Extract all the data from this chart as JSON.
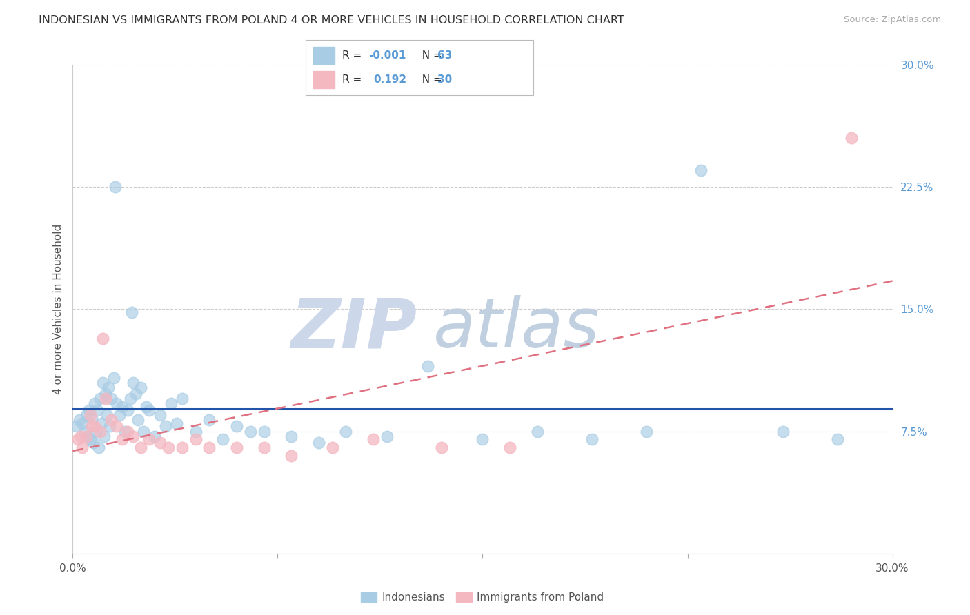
{
  "title": "INDONESIAN VS IMMIGRANTS FROM POLAND 4 OR MORE VEHICLES IN HOUSEHOLD CORRELATION CHART",
  "source": "Source: ZipAtlas.com",
  "ylabel_label": "4 or more Vehicles in Household",
  "right_yticks": [
    7.5,
    15.0,
    22.5,
    30.0
  ],
  "xlim": [
    0.0,
    30.0
  ],
  "ylim": [
    0.0,
    30.0
  ],
  "legend_blue_r": "-0.001",
  "legend_blue_n": "63",
  "legend_pink_r": "0.192",
  "legend_pink_n": "30",
  "legend_label_blue": "Indonesians",
  "legend_label_pink": "Immigrants from Poland",
  "blue_color": "#a8cce4",
  "pink_color": "#f4b8c1",
  "trendline_blue_color": "#2255aa",
  "trendline_pink_color": "#e07080",
  "watermark_zip_color": "#ccd9ea",
  "watermark_atlas_color": "#c8d8e8",
  "indonesian_x": [
    0.15,
    0.25,
    0.35,
    0.45,
    0.5,
    0.55,
    0.6,
    0.65,
    0.7,
    0.75,
    0.8,
    0.85,
    0.9,
    0.95,
    1.0,
    1.05,
    1.1,
    1.15,
    1.2,
    1.25,
    1.3,
    1.35,
    1.4,
    1.5,
    1.6,
    1.7,
    1.8,
    1.9,
    2.0,
    2.1,
    2.2,
    2.3,
    2.4,
    2.5,
    2.6,
    2.7,
    2.8,
    3.0,
    3.2,
    3.4,
    3.6,
    3.8,
    4.0,
    4.5,
    5.0,
    5.5,
    6.0,
    6.5,
    7.0,
    8.0,
    9.0,
    10.0,
    11.5,
    13.0,
    15.0,
    17.0,
    19.0,
    21.0,
    23.0,
    26.0,
    28.0,
    1.55,
    2.15
  ],
  "indonesian_y": [
    7.8,
    8.2,
    8.0,
    7.5,
    8.5,
    7.2,
    8.8,
    7.0,
    8.3,
    6.8,
    9.2,
    7.5,
    8.8,
    6.5,
    9.5,
    8.0,
    10.5,
    7.2,
    9.8,
    8.5,
    10.2,
    7.8,
    9.5,
    10.8,
    9.2,
    8.5,
    9.0,
    7.5,
    8.8,
    9.5,
    10.5,
    9.8,
    8.2,
    10.2,
    7.5,
    9.0,
    8.8,
    7.2,
    8.5,
    7.8,
    9.2,
    8.0,
    9.5,
    7.5,
    8.2,
    7.0,
    7.8,
    7.5,
    7.5,
    7.2,
    6.8,
    7.5,
    7.2,
    11.5,
    7.0,
    7.5,
    7.0,
    7.5,
    23.5,
    7.5,
    7.0,
    22.5,
    14.8
  ],
  "poland_x": [
    0.2,
    0.35,
    0.5,
    0.65,
    0.8,
    1.0,
    1.2,
    1.4,
    1.6,
    1.8,
    2.0,
    2.2,
    2.5,
    2.8,
    3.2,
    3.5,
    4.0,
    4.5,
    5.0,
    6.0,
    7.0,
    8.0,
    9.5,
    11.0,
    13.5,
    16.0,
    0.3,
    0.7,
    1.1,
    28.5
  ],
  "poland_y": [
    7.0,
    6.5,
    7.2,
    8.5,
    7.8,
    7.5,
    9.5,
    8.2,
    7.8,
    7.0,
    7.5,
    7.2,
    6.5,
    7.0,
    6.8,
    6.5,
    6.5,
    7.0,
    6.5,
    6.5,
    6.5,
    6.0,
    6.5,
    7.0,
    6.5,
    6.5,
    7.2,
    7.8,
    13.2,
    25.5
  ]
}
